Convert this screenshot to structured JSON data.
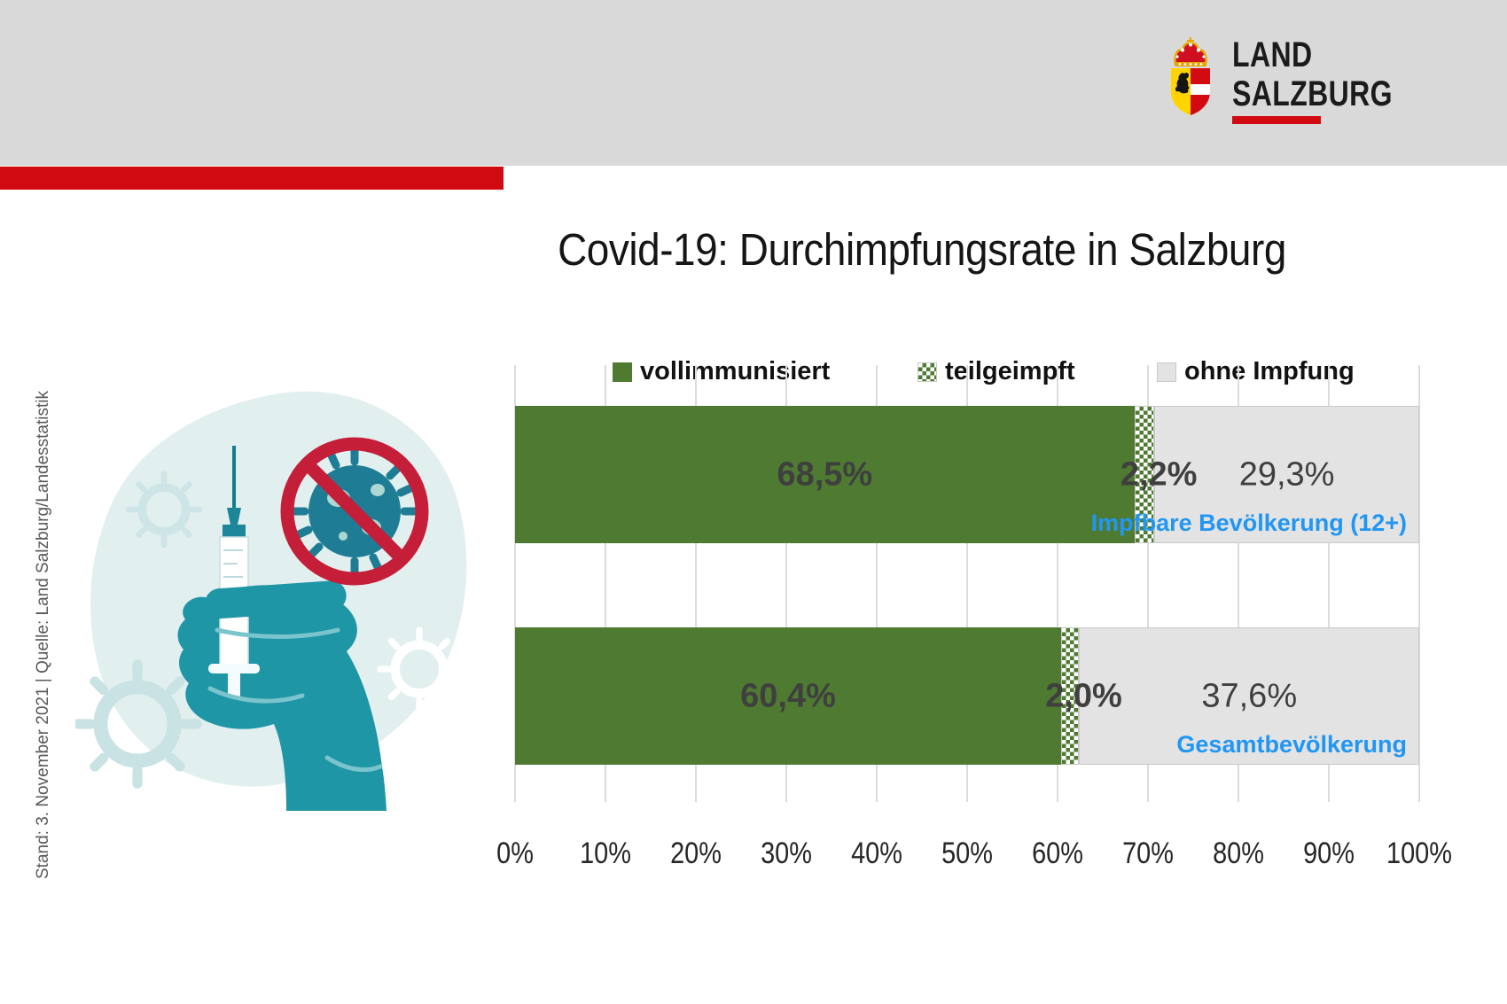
{
  "header": {
    "logo": {
      "line1": "LAND",
      "line2": "SALZBURG",
      "crest_icon": "salzburg-coat-of-arms"
    }
  },
  "title": "Covid-19: Durchimpfungsrate in Salzburg",
  "source_note": "Stand: 3. November 2021 | Quelle: Land Salzburg/Landesstatistik",
  "illustration": {
    "icons": [
      "hand-holding-syringe",
      "no-virus-prohibition-sign",
      "virus-outlines"
    ]
  },
  "colors": {
    "header_band": "#d9d9d9",
    "accent_red": "#d20a11",
    "bar_green": "#4e7b31",
    "bar_gray": "#e3e3e3",
    "category_blue": "#2196f3",
    "value_label_gray": "#3f3f3f",
    "illustration_teal": "#1f96a6",
    "prohibition_red": "#c51e38"
  },
  "chart_data": {
    "type": "bar",
    "orientation": "horizontal",
    "stacked": true,
    "grid": "vertical",
    "legend_position": "top",
    "xlim": [
      0,
      100
    ],
    "x_ticks": [
      "0%",
      "10%",
      "20%",
      "30%",
      "40%",
      "50%",
      "60%",
      "70%",
      "80%",
      "90%",
      "100%"
    ],
    "categories": [
      "Impfbare Bevölkerung (12+)",
      "Gesamtbevölkerung"
    ],
    "series": [
      {
        "name": "vollimmunisiert",
        "values": [
          68.5,
          60.4
        ],
        "labels": [
          "68,5%",
          "60,4%"
        ]
      },
      {
        "name": "teilgeimpft",
        "values": [
          2.2,
          2.0
        ],
        "labels": [
          "2,2%",
          "2,0%"
        ]
      },
      {
        "name": "ohne Impfung",
        "values": [
          29.3,
          37.6
        ],
        "labels": [
          "29,3%",
          "37,6%"
        ]
      }
    ]
  }
}
